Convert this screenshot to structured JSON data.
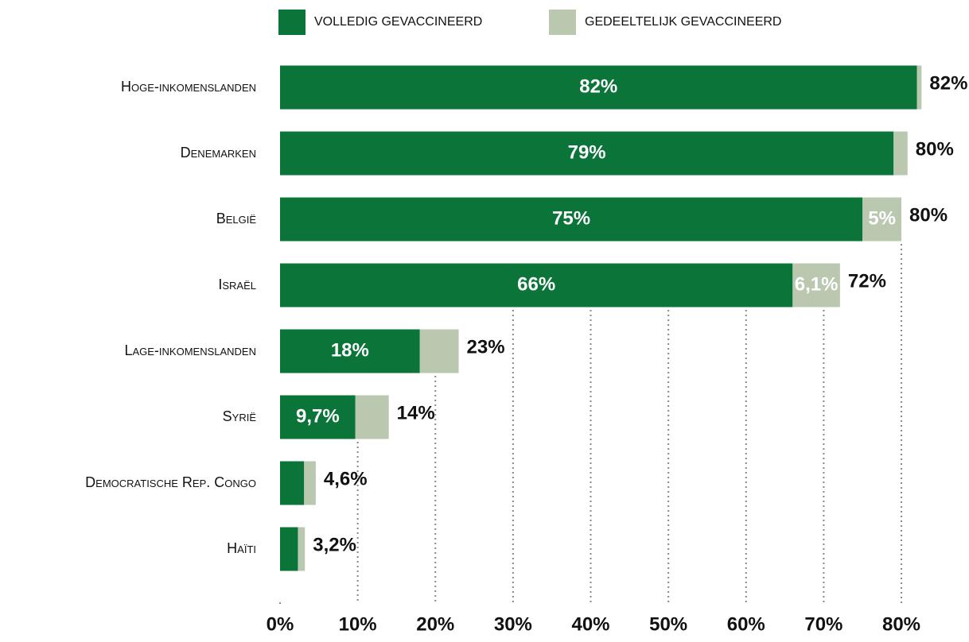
{
  "chart_data": {
    "type": "stacked-bar-horizontal",
    "categories": [
      "Hoge-inkomenslanden",
      "Denemarken",
      "België",
      "Israël",
      "Lage-inkomenslanden",
      "Syrië",
      "Democratische Rep. Congo",
      "Haïti"
    ],
    "series": [
      {
        "name": "VOLLEDIG GEVACCINEERD",
        "color": "#0b7438",
        "values": [
          82,
          79,
          75,
          66,
          18,
          9.7,
          3.1,
          2.3
        ],
        "value_labels": [
          "82%",
          "79%",
          "75%",
          "66%",
          "18%",
          "9,7%",
          null,
          null
        ]
      },
      {
        "name": "GEDEELTELIJK GEVACCINEERD",
        "color": "#bac8b0",
        "values": [
          0.6,
          1.8,
          5,
          6.1,
          5,
          4.3,
          1.5,
          0.9
        ],
        "value_labels": [
          null,
          null,
          "5%",
          "6,1%",
          null,
          null,
          null,
          null
        ]
      }
    ],
    "totals": {
      "values": [
        82,
        80,
        80,
        72,
        23,
        14,
        4.6,
        3.2
      ],
      "value_labels": [
        "82%",
        "80%",
        "80%",
        "72%",
        "23%",
        "14%",
        "4,6%",
        "3,2%"
      ]
    },
    "xlim": [
      0,
      80
    ],
    "xticks": [
      {
        "value": 0,
        "label": "0%"
      },
      {
        "value": 10,
        "label": "10%"
      },
      {
        "value": 20,
        "label": "20%"
      },
      {
        "value": 30,
        "label": "30%"
      },
      {
        "value": 40,
        "label": "40%"
      },
      {
        "value": 50,
        "label": "50%"
      },
      {
        "value": 60,
        "label": "60%"
      },
      {
        "value": 70,
        "label": "70%"
      },
      {
        "value": 80,
        "label": "80%"
      }
    ],
    "grid": true
  }
}
